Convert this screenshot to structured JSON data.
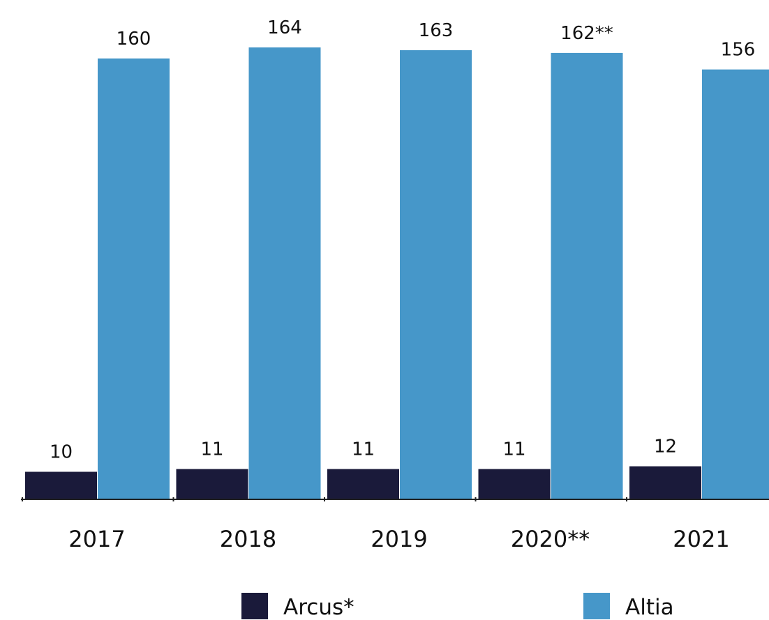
{
  "chart_data": {
    "type": "bar",
    "categories": [
      "2017",
      "2018",
      "2019",
      "2020**",
      "2021"
    ],
    "series": [
      {
        "name": "Arcus*",
        "values": [
          10,
          11,
          11,
          11,
          12
        ],
        "labels": [
          "10",
          "11",
          "11",
          "11",
          "12"
        ],
        "color": "#1a1a3a"
      },
      {
        "name": "Altia",
        "values": [
          160,
          164,
          163,
          162,
          156
        ],
        "labels": [
          "160",
          "164",
          "163",
          "162**",
          "156"
        ],
        "color": "#4697c9"
      }
    ],
    "ylim": [
      0,
      164
    ],
    "grid": false,
    "legend_position": "bottom"
  }
}
